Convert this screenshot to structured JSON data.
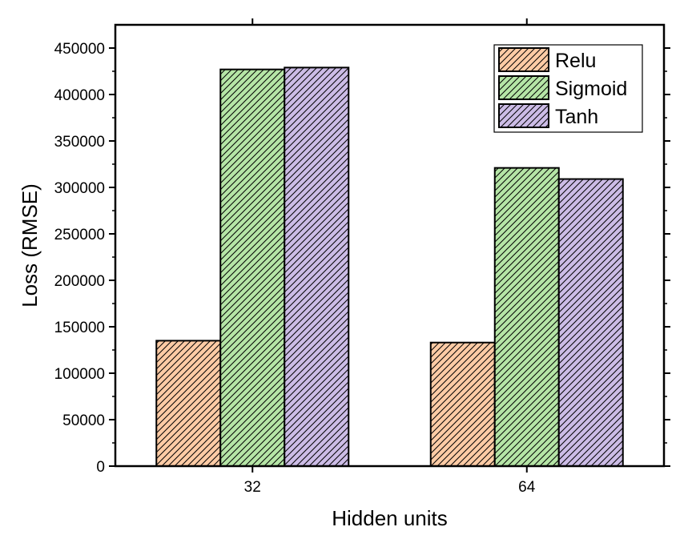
{
  "chart_data": {
    "type": "bar",
    "title": "",
    "xlabel": "Hidden units",
    "ylabel": "Loss (RMSE)",
    "categories": [
      "32",
      "64"
    ],
    "series": [
      {
        "name": "Relu",
        "values": [
          135000,
          133000
        ],
        "color": "#fdcba5"
      },
      {
        "name": "Sigmoid",
        "values": [
          427000,
          321000
        ],
        "color": "#b5e5a6"
      },
      {
        "name": "Tanh",
        "values": [
          429000,
          309000
        ],
        "color": "#ccbce6"
      }
    ],
    "ylim": [
      0,
      475000
    ],
    "yticks": [
      0,
      50000,
      100000,
      150000,
      200000,
      250000,
      300000,
      350000,
      400000,
      450000
    ],
    "ytick_labels": [
      "0",
      "50000",
      "100000",
      "150000",
      "200000",
      "250000",
      "300000",
      "350000",
      "400000",
      "450000"
    ],
    "legend_position": "top-right",
    "grid": false
  }
}
